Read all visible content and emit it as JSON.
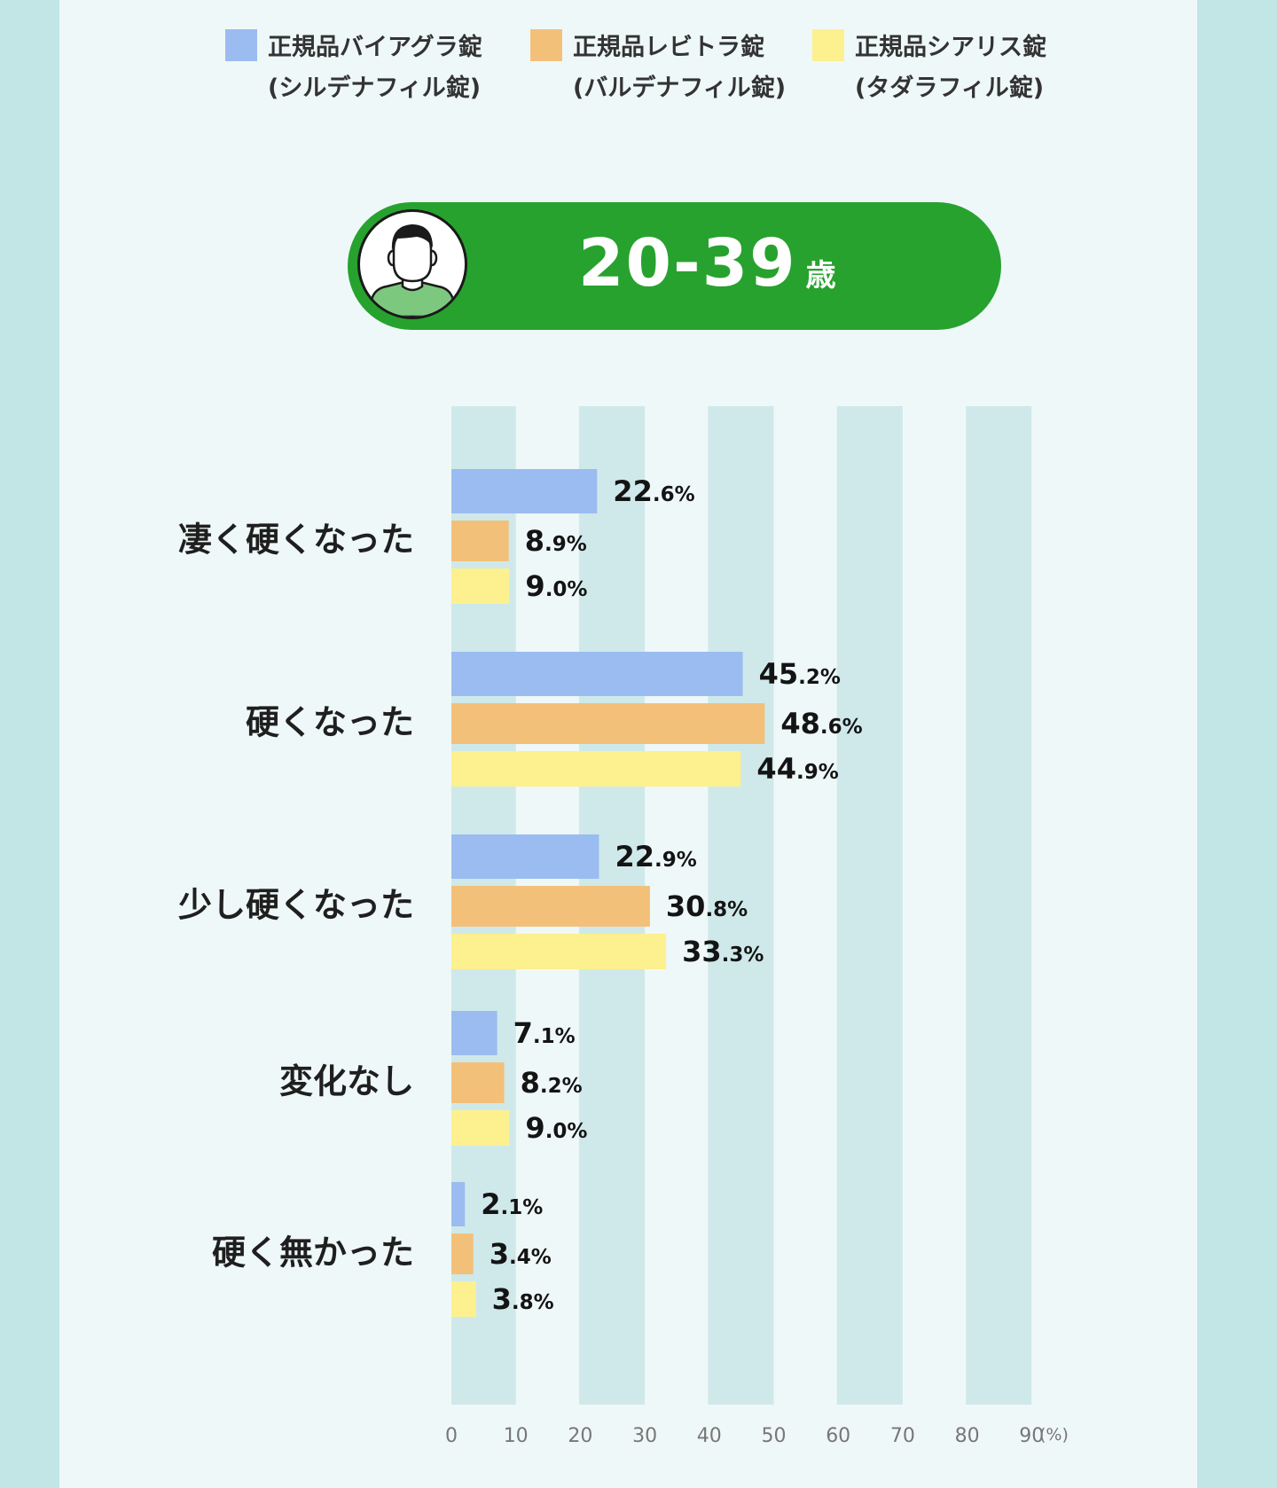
{
  "age_banner": {
    "range": "20-39",
    "unit": "歳"
  },
  "chart_data": {
    "type": "bar",
    "orientation": "horizontal",
    "categories": [
      "凄く硬くなった",
      "硬くなった",
      "少し硬くなった",
      "変化なし",
      "硬く無かった"
    ],
    "series": [
      {
        "name": "正規品バイアグラ錠 (シルデナフィル錠)",
        "name_line1": "正規品バイアグラ錠",
        "name_line2": "(シルデナフィル錠)",
        "color": "#9abcf0",
        "values": [
          22.6,
          45.2,
          22.9,
          7.1,
          2.1
        ]
      },
      {
        "name": "正規品レビトラ錠 (バルデナフィル錠)",
        "name_line1": "正規品レビトラ錠",
        "name_line2": "(バルデナフィル錠)",
        "color": "#f3c07a",
        "values": [
          8.9,
          48.6,
          30.8,
          8.2,
          3.4
        ]
      },
      {
        "name": "正規品シアリス錠 (タダラフィル錠)",
        "name_line1": "正規品シアリス錠",
        "name_line2": "(タダラフィル錠)",
        "color": "#fdf08e",
        "values": [
          9.0,
          44.9,
          33.3,
          9.0,
          3.8
        ]
      }
    ],
    "x_ticks": [
      "0",
      "10",
      "20",
      "30",
      "40",
      "50",
      "60",
      "70",
      "80",
      "90"
    ],
    "xlim": [
      0,
      90
    ],
    "x_unit": "(%)",
    "value_suffix": "%",
    "legend_position": "top",
    "grid_band_color": "#cfe9ea"
  }
}
